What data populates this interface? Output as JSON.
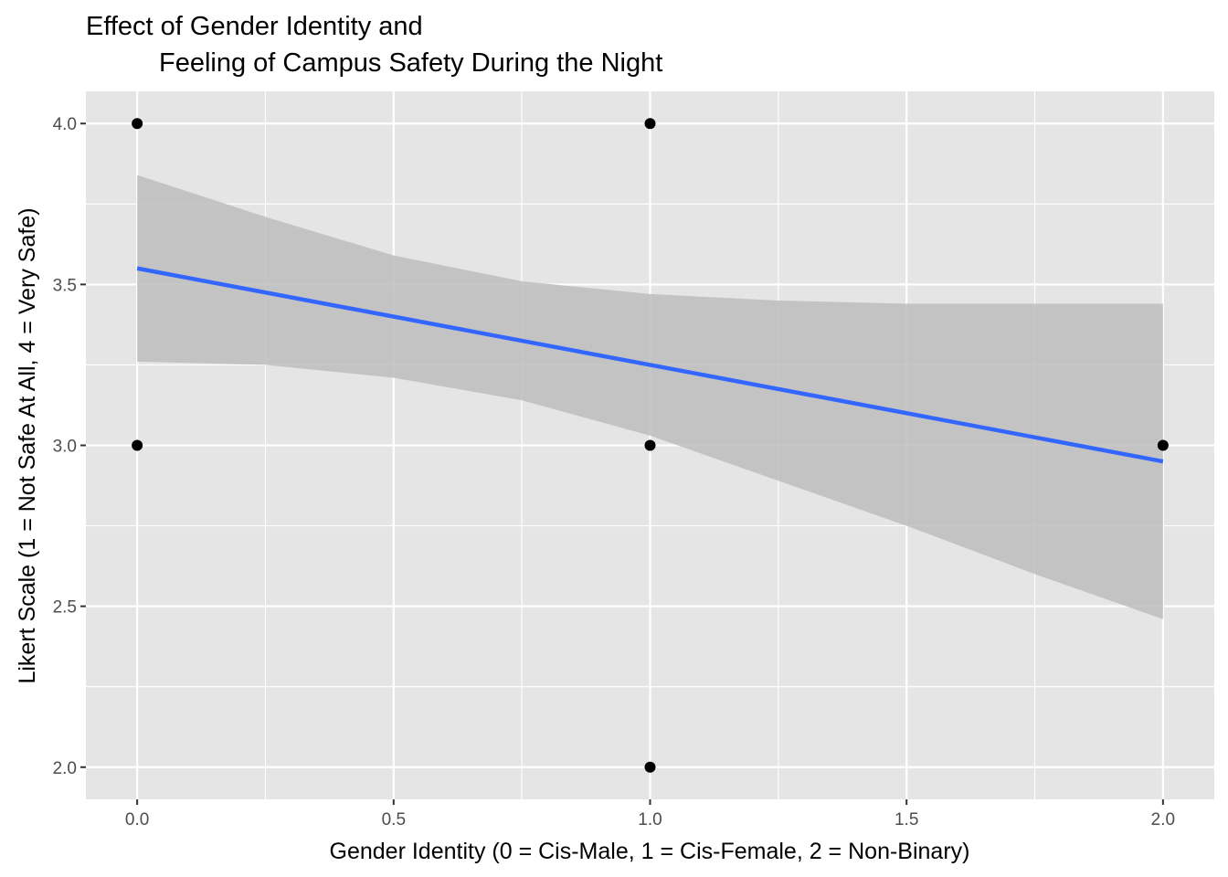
{
  "chart_data": {
    "type": "scatter",
    "title_line1": "Effect of Gender Identity and",
    "title_line2": "Feeling of Campus Safety During the Night",
    "xlabel": "Gender Identity (0 = Cis-Male, 1 = Cis-Female, 2 = Non-Binary)",
    "ylabel": "Likert Scale (1 = Not Safe At All, 4 = Very Safe)",
    "xlim": [
      -0.1,
      2.1
    ],
    "ylim": [
      1.9,
      4.1
    ],
    "x_ticks": [
      0.0,
      0.5,
      1.0,
      1.5,
      2.0
    ],
    "x_tick_labels": [
      "0.0",
      "0.5",
      "1.0",
      "1.5",
      "2.0"
    ],
    "y_ticks": [
      2.0,
      2.5,
      3.0,
      3.5,
      4.0
    ],
    "y_tick_labels": [
      "2.0",
      "2.5",
      "3.0",
      "3.5",
      "4.0"
    ],
    "grid": true,
    "points": [
      {
        "x": 0,
        "y": 4
      },
      {
        "x": 0,
        "y": 3
      },
      {
        "x": 1,
        "y": 4
      },
      {
        "x": 1,
        "y": 3
      },
      {
        "x": 1,
        "y": 2
      },
      {
        "x": 2,
        "y": 3
      }
    ],
    "fit_line": {
      "x": [
        0,
        2
      ],
      "y": [
        3.55,
        2.95
      ]
    },
    "confidence_band": {
      "x": [
        0,
        0.25,
        0.5,
        0.75,
        1.0,
        1.25,
        1.5,
        1.75,
        2.0
      ],
      "upper": [
        3.84,
        3.71,
        3.59,
        3.51,
        3.47,
        3.45,
        3.44,
        3.44,
        3.44
      ],
      "lower": [
        3.26,
        3.25,
        3.21,
        3.14,
        3.03,
        2.89,
        2.75,
        2.6,
        2.46
      ]
    },
    "colors": {
      "panel_background": "#e5e5e5",
      "grid": "#ffffff",
      "line": "#3366ff",
      "band": "#bdbdbd",
      "point": "#000000"
    }
  }
}
